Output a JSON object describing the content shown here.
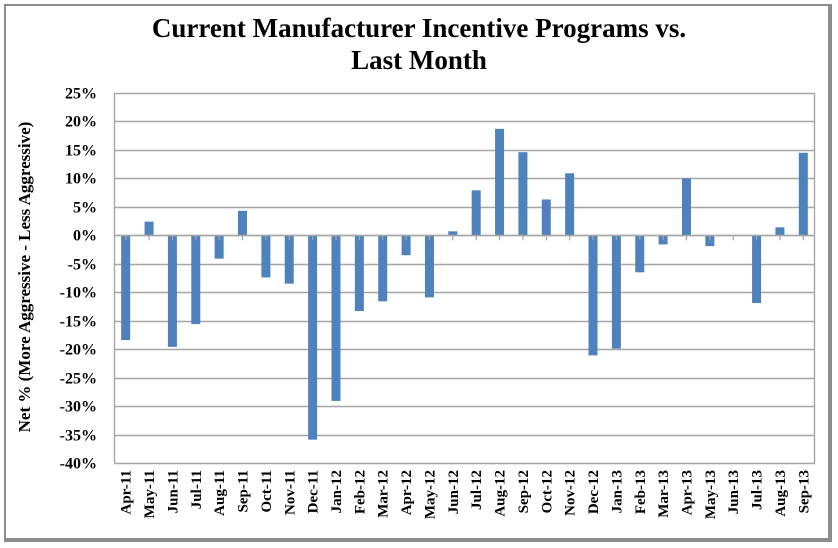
{
  "chart_data": {
    "type": "bar",
    "title_line1": "Current Manufacturer Incentive Programs vs.",
    "title_line2": "Last Month",
    "xlabel": "",
    "ylabel": "Net % (More Aggressive - Less Aggressive)",
    "ylim": [
      -40,
      25
    ],
    "ytick_step": 5,
    "yticks": [
      "25%",
      "20%",
      "15%",
      "10%",
      "5%",
      "0%",
      "-5%",
      "-10%",
      "-15%",
      "-20%",
      "-25%",
      "-30%",
      "-35%",
      "-40%"
    ],
    "ytick_values": [
      25,
      20,
      15,
      10,
      5,
      0,
      -5,
      -10,
      -15,
      -20,
      -25,
      -30,
      -35,
      -40
    ],
    "grid": true,
    "legend": "none",
    "bar_color": "#4F81BD",
    "categories": [
      "Apr-11",
      "May-11",
      "Jun-11",
      "Jul-11",
      "Aug-11",
      "Sep-11",
      "Oct-11",
      "Nov-11",
      "Dec-11",
      "Jan-12",
      "Feb-12",
      "Mar-12",
      "Apr-12",
      "May-12",
      "Jun-12",
      "Jul-12",
      "Aug-12",
      "Sep-12",
      "Oct-12",
      "Nov-12",
      "Dec-12",
      "Jan-13",
      "Feb-13",
      "Mar-13",
      "Apr-13",
      "May-13",
      "Jun-13",
      "Jul-13",
      "Aug-13",
      "Sep-13"
    ],
    "values": [
      -18.4,
      2.4,
      -19.6,
      -15.6,
      -4.1,
      4.3,
      -7.4,
      -8.5,
      -35.9,
      -29.1,
      -13.3,
      -11.6,
      -3.5,
      -10.9,
      0.7,
      7.9,
      18.7,
      14.6,
      6.3,
      10.9,
      -21.1,
      -19.9,
      -6.5,
      -1.6,
      10.0,
      -1.9,
      0,
      -11.9,
      1.4,
      14.5
    ]
  }
}
